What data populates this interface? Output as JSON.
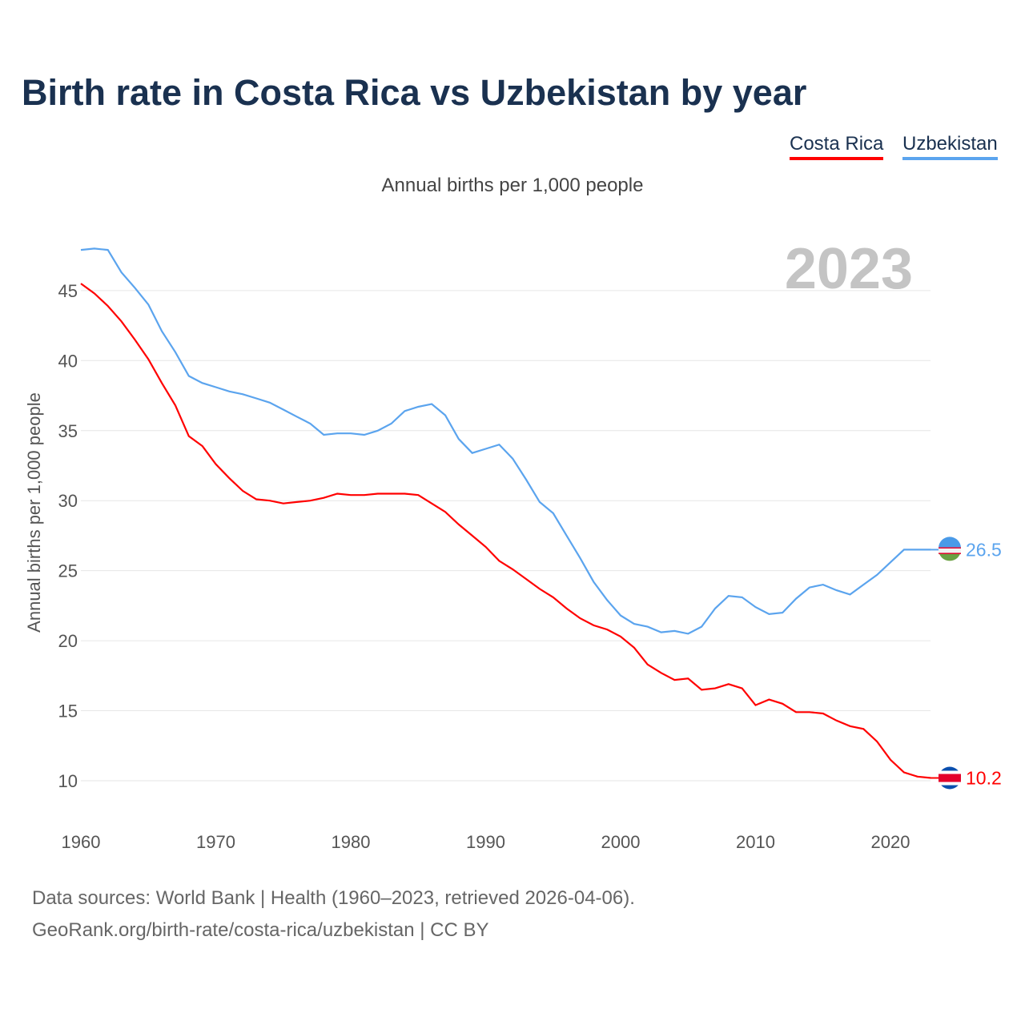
{
  "title": "Birth rate in Costa Rica vs Uzbekistan by year",
  "subtitle": "Annual births per 1,000 people",
  "footer": [
    "Data sources: World Bank | Health (1960–2023, retrieved 2026-04-06).",
    "GeoRank.org/birth-rate/costa-rica/uzbekistan | CC BY"
  ],
  "chart_data": {
    "type": "line",
    "title": "Birth rate in Costa Rica vs Uzbekistan by year",
    "ylabel": "Annual births per 1,000 people",
    "xlabel": "",
    "year_label": "2023",
    "xlim": [
      1960,
      2023
    ],
    "ylim": [
      8,
      50
    ],
    "xticks": [
      1960,
      1970,
      1980,
      1990,
      2000,
      2010,
      2020
    ],
    "yticks": [
      10,
      15,
      20,
      25,
      30,
      35,
      40,
      45
    ],
    "grid": true,
    "legend": "top-right",
    "x_start": 1960,
    "series": [
      {
        "name": "Costa Rica",
        "color": "#ff0000",
        "end_label": "10.2",
        "values": [
          45.5,
          44.8,
          43.9,
          42.8,
          41.5,
          40.1,
          38.4,
          36.8,
          34.6,
          33.9,
          32.6,
          31.6,
          30.7,
          30.1,
          30.0,
          29.8,
          29.9,
          30.0,
          30.2,
          30.5,
          30.4,
          30.4,
          30.5,
          30.5,
          30.5,
          30.4,
          29.8,
          29.2,
          28.3,
          27.5,
          26.7,
          25.7,
          25.1,
          24.4,
          23.7,
          23.1,
          22.3,
          21.6,
          21.1,
          20.8,
          20.3,
          19.5,
          18.3,
          17.7,
          17.2,
          17.3,
          16.5,
          16.6,
          16.9,
          16.6,
          15.4,
          15.8,
          15.5,
          14.9,
          14.9,
          14.8,
          14.3,
          13.9,
          13.7,
          12.8,
          11.5,
          10.6,
          10.3,
          10.2
        ]
      },
      {
        "name": "Uzbekistan",
        "color": "#5ba4ee",
        "end_label": "26.5",
        "values": [
          47.9,
          48.0,
          47.9,
          46.3,
          45.2,
          44.0,
          42.1,
          40.6,
          38.9,
          38.4,
          38.1,
          37.8,
          37.6,
          37.3,
          37.0,
          36.5,
          36.0,
          35.5,
          34.7,
          34.8,
          34.8,
          34.7,
          35.0,
          35.5,
          36.4,
          36.7,
          36.9,
          36.1,
          34.4,
          33.4,
          33.7,
          34.0,
          33.0,
          31.5,
          29.9,
          29.1,
          27.5,
          25.9,
          24.2,
          22.9,
          21.8,
          21.2,
          21.0,
          20.6,
          20.7,
          20.5,
          21.0,
          22.3,
          23.2,
          23.1,
          22.4,
          21.9,
          22.0,
          23.0,
          23.8,
          24.0,
          23.6,
          23.3,
          24.0,
          24.7,
          25.6,
          26.5,
          26.5,
          26.5
        ]
      }
    ]
  }
}
